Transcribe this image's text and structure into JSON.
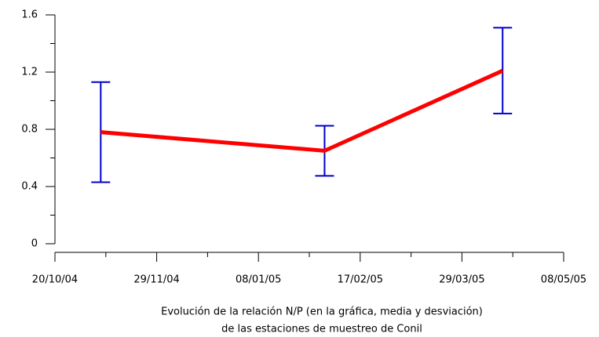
{
  "chart_data": {
    "type": "line",
    "xlabel": [
      "Evolución de la relación N/P (en la gráfica, media y desviación)",
      "de las estaciones de muestreo de Conil"
    ],
    "x": [
      "2004-11-07",
      "2005-02-03",
      "2005-04-14"
    ],
    "series": [
      {
        "name": "N/P",
        "color": "#ff0000",
        "error_color": "#0000cc",
        "values": [
          0.78,
          0.65,
          1.21
        ],
        "errors": [
          0.35,
          0.175,
          0.3
        ]
      }
    ],
    "xlim": [
      "2004-10-20",
      "2005-05-08"
    ],
    "xticks": [
      {
        "value": "2004-10-20",
        "label": "20/10/04"
      },
      {
        "value": "2004-11-29",
        "label": "29/11/04"
      },
      {
        "value": "2005-01-08",
        "label": "08/01/05"
      },
      {
        "value": "2005-02-17",
        "label": "17/02/05"
      },
      {
        "value": "2005-03-29",
        "label": "29/03/05"
      },
      {
        "value": "2005-05-08",
        "label": "08/05/05"
      }
    ],
    "ylim": [
      0,
      1.6
    ],
    "yticks": [
      0,
      0.4,
      0.8,
      1.2,
      1.6
    ],
    "grid": false
  }
}
